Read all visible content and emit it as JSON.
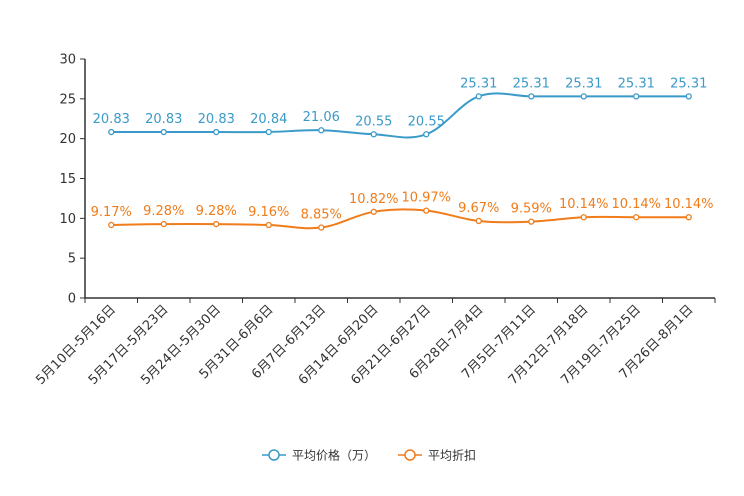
{
  "chart_data": {
    "type": "line",
    "title": "",
    "xlabel": "",
    "ylabel": "",
    "ylim": [
      0,
      30
    ],
    "yticks": [
      0,
      5,
      10,
      15,
      20,
      25,
      30
    ],
    "grid": false,
    "legend_position": "bottom-center",
    "categories": [
      "5月10日-5月16日",
      "5月17日-5月23日",
      "5月24日-5月30日",
      "5月31日-6月6日",
      "6月7日-6月13日",
      "6月14日-6月20日",
      "6月21日-6月27日",
      "6月28日-7月4日",
      "7月5日-7月11日",
      "7月12日-7月18日",
      "7月19日-7月25日",
      "7月26日-8月1日"
    ],
    "series": [
      {
        "name": "平均价格（万）",
        "color": "#3a9ac9",
        "values": [
          20.83,
          20.83,
          20.83,
          20.84,
          21.06,
          20.55,
          20.55,
          25.31,
          25.31,
          25.31,
          25.31,
          25.31
        ],
        "labels": [
          "20.83",
          "20.83",
          "20.83",
          "20.84",
          "21.06",
          "20.55",
          "20.55",
          "25.31",
          "25.31",
          "25.31",
          "25.31",
          "25.31"
        ]
      },
      {
        "name": "平均折扣",
        "color": "#f07c1a",
        "values": [
          9.17,
          9.28,
          9.28,
          9.16,
          8.85,
          10.82,
          10.97,
          9.67,
          9.59,
          10.14,
          10.14,
          10.14
        ],
        "labels": [
          "9.17%",
          "9.28%",
          "9.28%",
          "9.16%",
          "8.85%",
          "10.82%",
          "10.97%",
          "9.67%",
          "9.59%",
          "10.14%",
          "10.14%",
          "10.14%"
        ]
      }
    ]
  }
}
